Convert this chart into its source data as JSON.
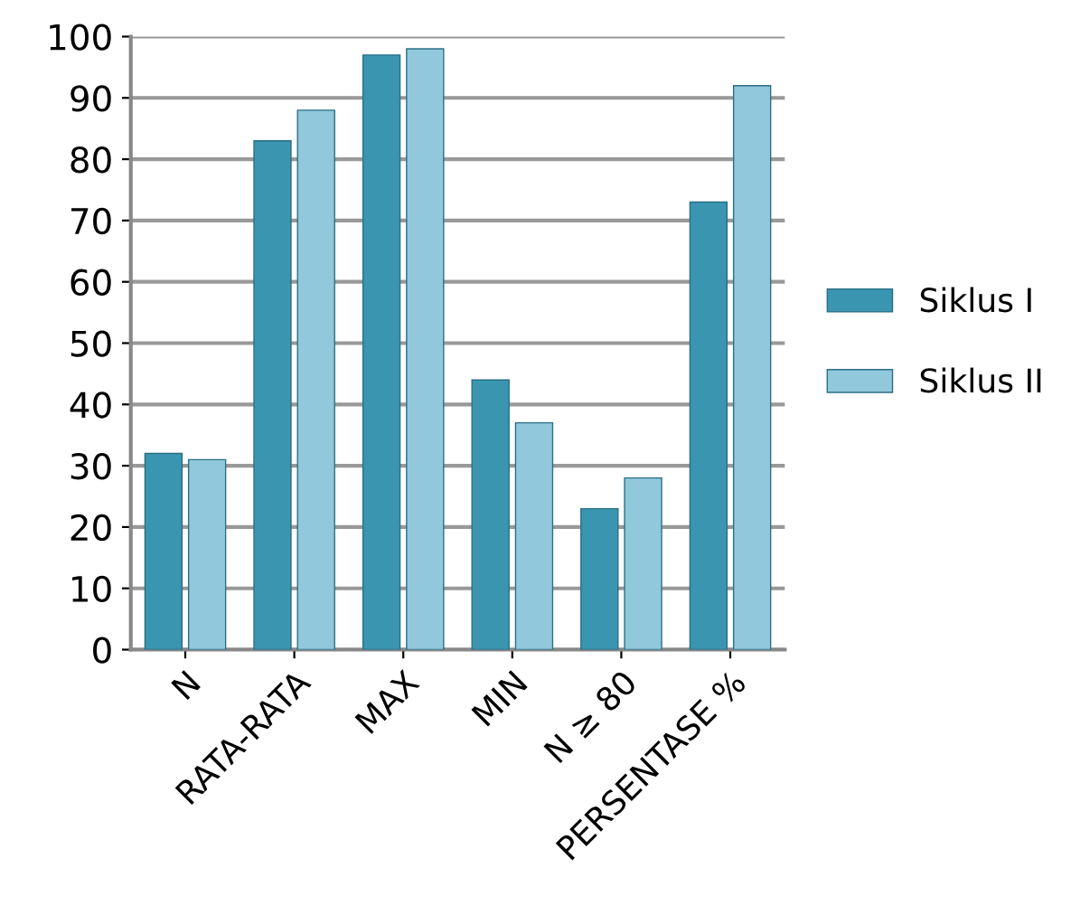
{
  "chart_data": {
    "type": "bar",
    "categories": [
      "N",
      "RATA-RATA",
      "MAX",
      "MIN",
      "N ≥ 80",
      "PERSENTASE %"
    ],
    "series": [
      {
        "name": "Siklus I",
        "color": "#3a95b0",
        "values": [
          32,
          83,
          97,
          44,
          23,
          73
        ]
      },
      {
        "name": "Siklus II",
        "color": "#92c8dc",
        "values": [
          31,
          88,
          98,
          37,
          28,
          92
        ]
      }
    ],
    "ylim": [
      0,
      100
    ],
    "yticks": [
      0,
      10,
      20,
      30,
      40,
      50,
      60,
      70,
      80,
      90,
      100
    ],
    "grid": "y",
    "legend": "right"
  }
}
